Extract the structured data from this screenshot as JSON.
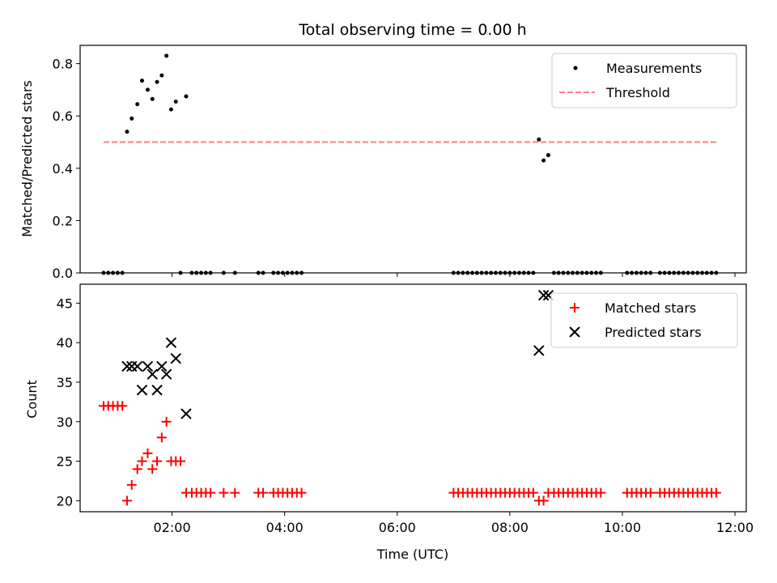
{
  "figure": {
    "title": "Total observing time = 0.00 h",
    "colors": {
      "measurement": "#000000",
      "threshold": "#ff7f7f",
      "matched": "#ff0000",
      "predicted": "#000000"
    }
  },
  "chart_data": [
    {
      "type": "scatter",
      "title": "Total observing time = 0.00 h",
      "xlabel": "",
      "ylabel": "Matched/Predicted stars",
      "xlim": [
        "00:22",
        "12:12"
      ],
      "ylim": [
        0,
        0.87
      ],
      "xticks": [
        "02:00",
        "04:00",
        "06:00",
        "08:00",
        "10:00",
        "12:00"
      ],
      "yticks": [
        0.0,
        0.2,
        0.4,
        0.6,
        0.8
      ],
      "ytick_labels": [
        "0.0",
        "0.2",
        "0.4",
        "0.6",
        "0.8"
      ],
      "grid": false,
      "legend_position": "top-right",
      "legend": [
        "Measurements",
        "Threshold"
      ],
      "series": [
        {
          "name": "Measurements",
          "marker": "point",
          "points": [
            [
              "00:47",
              0
            ],
            [
              "00:52",
              0
            ],
            [
              "00:57",
              0
            ],
            [
              "01:02",
              0
            ],
            [
              "01:07",
              0
            ],
            [
              "01:12",
              0.54
            ],
            [
              "01:17",
              0.59
            ],
            [
              "01:23",
              0.645
            ],
            [
              "01:28",
              0.735
            ],
            [
              "01:34",
              0.7
            ],
            [
              "01:39",
              0.665
            ],
            [
              "01:44",
              0.73
            ],
            [
              "01:49",
              0.755
            ],
            [
              "01:54",
              0.83
            ],
            [
              "01:59",
              0.625
            ],
            [
              "02:04",
              0.655
            ],
            [
              "02:09",
              0
            ],
            [
              "02:15",
              0.675
            ],
            [
              "02:21",
              0
            ],
            [
              "02:26",
              0
            ],
            [
              "02:31",
              0
            ],
            [
              "02:36",
              0
            ],
            [
              "02:41",
              0
            ],
            [
              "02:55",
              0
            ],
            [
              "03:07",
              0
            ],
            [
              "03:32",
              0
            ],
            [
              "03:37",
              0
            ],
            [
              "03:48",
              0
            ],
            [
              "03:53",
              0
            ],
            [
              "03:58",
              0
            ],
            [
              "04:03",
              0
            ],
            [
              "04:08",
              0
            ],
            [
              "04:13",
              0
            ],
            [
              "04:18",
              0
            ],
            [
              "07:00",
              0
            ],
            [
              "07:05",
              0
            ],
            [
              "07:10",
              0
            ],
            [
              "07:15",
              0
            ],
            [
              "07:20",
              0
            ],
            [
              "07:25",
              0
            ],
            [
              "07:30",
              0
            ],
            [
              "07:35",
              0
            ],
            [
              "07:40",
              0
            ],
            [
              "07:45",
              0
            ],
            [
              "07:50",
              0
            ],
            [
              "07:55",
              0
            ],
            [
              "08:00",
              0
            ],
            [
              "08:05",
              0
            ],
            [
              "08:10",
              0
            ],
            [
              "08:15",
              0
            ],
            [
              "08:20",
              0
            ],
            [
              "08:25",
              0
            ],
            [
              "08:31",
              0.51
            ],
            [
              "08:36",
              0.43
            ],
            [
              "08:41",
              0.45
            ],
            [
              "08:47",
              0
            ],
            [
              "08:52",
              0
            ],
            [
              "08:57",
              0
            ],
            [
              "09:02",
              0
            ],
            [
              "09:07",
              0
            ],
            [
              "09:12",
              0
            ],
            [
              "09:17",
              0
            ],
            [
              "09:22",
              0
            ],
            [
              "09:27",
              0
            ],
            [
              "09:32",
              0
            ],
            [
              "09:37",
              0
            ],
            [
              "10:05",
              0
            ],
            [
              "10:10",
              0
            ],
            [
              "10:15",
              0
            ],
            [
              "10:20",
              0
            ],
            [
              "10:25",
              0
            ],
            [
              "10:30",
              0
            ],
            [
              "10:40",
              0
            ],
            [
              "10:45",
              0
            ],
            [
              "10:50",
              0
            ],
            [
              "10:55",
              0
            ],
            [
              "11:00",
              0
            ],
            [
              "11:05",
              0
            ],
            [
              "11:10",
              0
            ],
            [
              "11:15",
              0
            ],
            [
              "11:20",
              0
            ],
            [
              "11:25",
              0
            ],
            [
              "11:30",
              0
            ],
            [
              "11:35",
              0
            ],
            [
              "11:40",
              0
            ]
          ]
        },
        {
          "name": "Threshold",
          "marker": "dashed-line",
          "points": [
            [
              "00:47",
              0.5
            ],
            [
              "11:42",
              0.5
            ]
          ]
        }
      ]
    },
    {
      "type": "scatter",
      "xlabel": "Time (UTC)",
      "ylabel": "Count",
      "xlim": [
        "00:22",
        "12:12"
      ],
      "ylim": [
        18.6,
        47.4
      ],
      "xticks": [
        "02:00",
        "04:00",
        "06:00",
        "08:00",
        "10:00",
        "12:00"
      ],
      "yticks": [
        20,
        25,
        30,
        35,
        40,
        45
      ],
      "ytick_labels": [
        "20",
        "25",
        "30",
        "35",
        "40",
        "45"
      ],
      "grid": false,
      "legend_position": "top-right",
      "legend": [
        "Matched stars",
        "Predicted stars"
      ],
      "series": [
        {
          "name": "Matched stars",
          "marker": "plus",
          "points": [
            [
              "00:47",
              32
            ],
            [
              "00:52",
              32
            ],
            [
              "00:57",
              32
            ],
            [
              "01:02",
              32
            ],
            [
              "01:07",
              32
            ],
            [
              "01:12",
              20
            ],
            [
              "01:17",
              22
            ],
            [
              "01:23",
              24
            ],
            [
              "01:28",
              25
            ],
            [
              "01:34",
              26
            ],
            [
              "01:39",
              24
            ],
            [
              "01:44",
              25
            ],
            [
              "01:49",
              28
            ],
            [
              "01:54",
              30
            ],
            [
              "01:59",
              25
            ],
            [
              "02:04",
              25
            ],
            [
              "02:09",
              25
            ],
            [
              "02:15",
              21
            ],
            [
              "02:21",
              21
            ],
            [
              "02:26",
              21
            ],
            [
              "02:31",
              21
            ],
            [
              "02:36",
              21
            ],
            [
              "02:41",
              21
            ],
            [
              "02:55",
              21
            ],
            [
              "03:07",
              21
            ],
            [
              "03:32",
              21
            ],
            [
              "03:37",
              21
            ],
            [
              "03:48",
              21
            ],
            [
              "03:53",
              21
            ],
            [
              "03:58",
              21
            ],
            [
              "04:03",
              21
            ],
            [
              "04:08",
              21
            ],
            [
              "04:13",
              21
            ],
            [
              "04:18",
              21
            ],
            [
              "07:00",
              21
            ],
            [
              "07:05",
              21
            ],
            [
              "07:10",
              21
            ],
            [
              "07:15",
              21
            ],
            [
              "07:20",
              21
            ],
            [
              "07:25",
              21
            ],
            [
              "07:30",
              21
            ],
            [
              "07:35",
              21
            ],
            [
              "07:40",
              21
            ],
            [
              "07:45",
              21
            ],
            [
              "07:50",
              21
            ],
            [
              "07:55",
              21
            ],
            [
              "08:00",
              21
            ],
            [
              "08:05",
              21
            ],
            [
              "08:10",
              21
            ],
            [
              "08:15",
              21
            ],
            [
              "08:20",
              21
            ],
            [
              "08:25",
              21
            ],
            [
              "08:31",
              20
            ],
            [
              "08:36",
              20
            ],
            [
              "08:41",
              21
            ],
            [
              "08:47",
              21
            ],
            [
              "08:52",
              21
            ],
            [
              "08:57",
              21
            ],
            [
              "09:02",
              21
            ],
            [
              "09:07",
              21
            ],
            [
              "09:12",
              21
            ],
            [
              "09:17",
              21
            ],
            [
              "09:22",
              21
            ],
            [
              "09:27",
              21
            ],
            [
              "09:32",
              21
            ],
            [
              "09:37",
              21
            ],
            [
              "10:05",
              21
            ],
            [
              "10:10",
              21
            ],
            [
              "10:15",
              21
            ],
            [
              "10:20",
              21
            ],
            [
              "10:25",
              21
            ],
            [
              "10:30",
              21
            ],
            [
              "10:40",
              21
            ],
            [
              "10:45",
              21
            ],
            [
              "10:50",
              21
            ],
            [
              "10:55",
              21
            ],
            [
              "11:00",
              21
            ],
            [
              "11:05",
              21
            ],
            [
              "11:10",
              21
            ],
            [
              "11:15",
              21
            ],
            [
              "11:20",
              21
            ],
            [
              "11:25",
              21
            ],
            [
              "11:30",
              21
            ],
            [
              "11:35",
              21
            ],
            [
              "11:40",
              21
            ]
          ]
        },
        {
          "name": "Predicted stars",
          "marker": "x",
          "points": [
            [
              "01:12",
              37
            ],
            [
              "01:17",
              37
            ],
            [
              "01:23",
              37
            ],
            [
              "01:28",
              34
            ],
            [
              "01:34",
              37
            ],
            [
              "01:39",
              36
            ],
            [
              "01:44",
              34
            ],
            [
              "01:49",
              37
            ],
            [
              "01:54",
              36
            ],
            [
              "01:59",
              40
            ],
            [
              "02:04",
              38
            ],
            [
              "02:15",
              31
            ],
            [
              "08:31",
              39
            ],
            [
              "08:36",
              46
            ],
            [
              "08:41",
              46
            ]
          ]
        }
      ]
    }
  ]
}
